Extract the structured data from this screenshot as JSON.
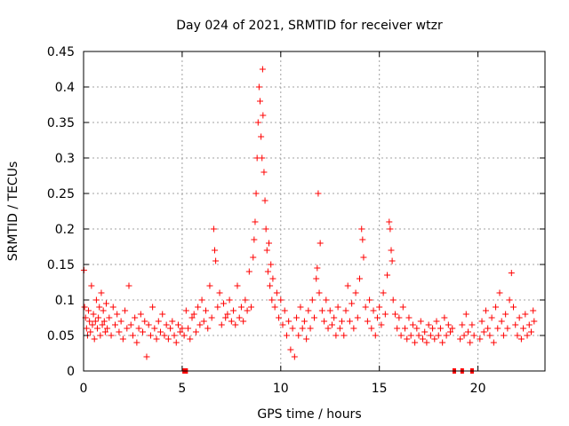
{
  "chart_data": {
    "type": "scatter",
    "title": "Day 024 of 2021, SRMTID for receiver wtzr",
    "xlabel": "GPS time / hours",
    "ylabel": "SRMTID / TECUs",
    "xlim": [
      0,
      23.4
    ],
    "ylim": [
      0,
      0.45
    ],
    "xticks": [
      0,
      5,
      10,
      15,
      20
    ],
    "xtick_labels": [
      "0",
      "5",
      "10",
      "15",
      "20"
    ],
    "yticks": [
      0,
      0.05,
      0.1,
      0.15,
      0.2,
      0.25,
      0.3,
      0.35,
      0.4,
      0.45
    ],
    "ytick_labels": [
      "0",
      "0.05",
      "0.1",
      "0.15",
      "0.2",
      "0.25",
      "0.3",
      "0.35",
      "0.4",
      "0.45"
    ],
    "grid": true,
    "marker": "+",
    "series": [
      {
        "name": "SRMTID",
        "color": "#ff0000",
        "points": [
          [
            0.02,
            0.142
          ],
          [
            0.05,
            0.09
          ],
          [
            0.1,
            0.075
          ],
          [
            0.15,
            0.06
          ],
          [
            0.2,
            0.05
          ],
          [
            0.25,
            0.085
          ],
          [
            0.3,
            0.07
          ],
          [
            0.35,
            0.055
          ],
          [
            0.4,
            0.12
          ],
          [
            0.45,
            0.065
          ],
          [
            0.5,
            0.08
          ],
          [
            0.55,
            0.045
          ],
          [
            0.6,
            0.07
          ],
          [
            0.65,
            0.1
          ],
          [
            0.7,
            0.06
          ],
          [
            0.75,
            0.075
          ],
          [
            0.8,
            0.09
          ],
          [
            0.85,
            0.05
          ],
          [
            0.9,
            0.11
          ],
          [
            0.95,
            0.065
          ],
          [
            1.0,
            0.085
          ],
          [
            1.05,
            0.07
          ],
          [
            1.1,
            0.055
          ],
          [
            1.15,
            0.095
          ],
          [
            1.2,
            0.06
          ],
          [
            1.3,
            0.075
          ],
          [
            1.4,
            0.05
          ],
          [
            1.5,
            0.09
          ],
          [
            1.6,
            0.065
          ],
          [
            1.7,
            0.08
          ],
          [
            1.8,
            0.055
          ],
          [
            1.9,
            0.07
          ],
          [
            2.0,
            0.045
          ],
          [
            2.1,
            0.085
          ],
          [
            2.2,
            0.06
          ],
          [
            2.3,
            0.12
          ],
          [
            2.4,
            0.065
          ],
          [
            2.5,
            0.05
          ],
          [
            2.6,
            0.075
          ],
          [
            2.7,
            0.04
          ],
          [
            2.8,
            0.06
          ],
          [
            2.9,
            0.08
          ],
          [
            3.0,
            0.055
          ],
          [
            3.1,
            0.07
          ],
          [
            3.2,
            0.02
          ],
          [
            3.3,
            0.065
          ],
          [
            3.4,
            0.05
          ],
          [
            3.5,
            0.09
          ],
          [
            3.6,
            0.06
          ],
          [
            3.7,
            0.045
          ],
          [
            3.8,
            0.07
          ],
          [
            3.9,
            0.055
          ],
          [
            4.0,
            0.08
          ],
          [
            4.1,
            0.05
          ],
          [
            4.2,
            0.065
          ],
          [
            4.3,
            0.045
          ],
          [
            4.4,
            0.06
          ],
          [
            4.5,
            0.07
          ],
          [
            4.6,
            0.05
          ],
          [
            4.7,
            0.04
          ],
          [
            4.8,
            0.065
          ],
          [
            4.9,
            0.055
          ],
          [
            5.0,
            0.06
          ],
          [
            5.1,
            0.05
          ],
          [
            5.2,
            0.085
          ],
          [
            5.3,
            0.06
          ],
          [
            5.4,
            0.045
          ],
          [
            5.5,
            0.075
          ],
          [
            5.6,
            0.08
          ],
          [
            5.7,
            0.055
          ],
          [
            5.8,
            0.09
          ],
          [
            5.9,
            0.065
          ],
          [
            6.0,
            0.1
          ],
          [
            6.1,
            0.07
          ],
          [
            6.2,
            0.085
          ],
          [
            6.3,
            0.06
          ],
          [
            6.4,
            0.12
          ],
          [
            6.5,
            0.075
          ],
          [
            6.6,
            0.2
          ],
          [
            6.65,
            0.17
          ],
          [
            6.7,
            0.155
          ],
          [
            6.8,
            0.09
          ],
          [
            6.9,
            0.11
          ],
          [
            7.0,
            0.065
          ],
          [
            7.1,
            0.095
          ],
          [
            7.2,
            0.075
          ],
          [
            7.3,
            0.08
          ],
          [
            7.4,
            0.1
          ],
          [
            7.5,
            0.07
          ],
          [
            7.6,
            0.085
          ],
          [
            7.7,
            0.065
          ],
          [
            7.8,
            0.12
          ],
          [
            7.9,
            0.075
          ],
          [
            8.0,
            0.09
          ],
          [
            8.1,
            0.07
          ],
          [
            8.2,
            0.1
          ],
          [
            8.3,
            0.085
          ],
          [
            8.4,
            0.14
          ],
          [
            8.5,
            0.09
          ],
          [
            8.6,
            0.16
          ],
          [
            8.65,
            0.185
          ],
          [
            8.7,
            0.21
          ],
          [
            8.75,
            0.25
          ],
          [
            8.8,
            0.3
          ],
          [
            8.85,
            0.35
          ],
          [
            8.9,
            0.4
          ],
          [
            8.95,
            0.38
          ],
          [
            9.0,
            0.33
          ],
          [
            9.05,
            0.3
          ],
          [
            9.08,
            0.425
          ],
          [
            9.1,
            0.36
          ],
          [
            9.15,
            0.28
          ],
          [
            9.2,
            0.24
          ],
          [
            9.25,
            0.2
          ],
          [
            9.3,
            0.17
          ],
          [
            9.35,
            0.14
          ],
          [
            9.4,
            0.18
          ],
          [
            9.45,
            0.12
          ],
          [
            9.5,
            0.15
          ],
          [
            9.55,
            0.1
          ],
          [
            9.6,
            0.13
          ],
          [
            9.7,
            0.09
          ],
          [
            9.8,
            0.11
          ],
          [
            9.9,
            0.075
          ],
          [
            10.0,
            0.1
          ],
          [
            10.1,
            0.065
          ],
          [
            10.2,
            0.085
          ],
          [
            10.3,
            0.05
          ],
          [
            10.4,
            0.07
          ],
          [
            10.5,
            0.03
          ],
          [
            10.6,
            0.06
          ],
          [
            10.7,
            0.02
          ],
          [
            10.8,
            0.075
          ],
          [
            10.9,
            0.05
          ],
          [
            11.0,
            0.09
          ],
          [
            11.1,
            0.06
          ],
          [
            11.2,
            0.07
          ],
          [
            11.3,
            0.045
          ],
          [
            11.4,
            0.085
          ],
          [
            11.5,
            0.06
          ],
          [
            11.6,
            0.1
          ],
          [
            11.7,
            0.075
          ],
          [
            11.8,
            0.13
          ],
          [
            11.85,
            0.145
          ],
          [
            11.9,
            0.25
          ],
          [
            11.95,
            0.11
          ],
          [
            12.0,
            0.18
          ],
          [
            12.1,
            0.085
          ],
          [
            12.2,
            0.07
          ],
          [
            12.3,
            0.1
          ],
          [
            12.4,
            0.06
          ],
          [
            12.5,
            0.085
          ],
          [
            12.6,
            0.065
          ],
          [
            12.7,
            0.075
          ],
          [
            12.8,
            0.05
          ],
          [
            12.9,
            0.09
          ],
          [
            13.0,
            0.06
          ],
          [
            13.1,
            0.07
          ],
          [
            13.2,
            0.05
          ],
          [
            13.3,
            0.085
          ],
          [
            13.4,
            0.12
          ],
          [
            13.5,
            0.07
          ],
          [
            13.6,
            0.095
          ],
          [
            13.7,
            0.06
          ],
          [
            13.8,
            0.11
          ],
          [
            13.9,
            0.075
          ],
          [
            14.0,
            0.13
          ],
          [
            14.1,
            0.2
          ],
          [
            14.15,
            0.185
          ],
          [
            14.2,
            0.16
          ],
          [
            14.3,
            0.09
          ],
          [
            14.4,
            0.07
          ],
          [
            14.5,
            0.1
          ],
          [
            14.6,
            0.06
          ],
          [
            14.7,
            0.085
          ],
          [
            14.8,
            0.05
          ],
          [
            14.9,
            0.075
          ],
          [
            15.0,
            0.09
          ],
          [
            15.1,
            0.065
          ],
          [
            15.2,
            0.11
          ],
          [
            15.3,
            0.08
          ],
          [
            15.4,
            0.135
          ],
          [
            15.5,
            0.21
          ],
          [
            15.55,
            0.2
          ],
          [
            15.6,
            0.17
          ],
          [
            15.65,
            0.155
          ],
          [
            15.7,
            0.1
          ],
          [
            15.8,
            0.08
          ],
          [
            15.9,
            0.06
          ],
          [
            16.0,
            0.075
          ],
          [
            16.1,
            0.05
          ],
          [
            16.2,
            0.09
          ],
          [
            16.3,
            0.06
          ],
          [
            16.4,
            0.045
          ],
          [
            16.5,
            0.075
          ],
          [
            16.6,
            0.05
          ],
          [
            16.7,
            0.065
          ],
          [
            16.8,
            0.04
          ],
          [
            16.9,
            0.06
          ],
          [
            17.0,
            0.05
          ],
          [
            17.1,
            0.07
          ],
          [
            17.2,
            0.045
          ],
          [
            17.3,
            0.055
          ],
          [
            17.4,
            0.04
          ],
          [
            17.5,
            0.065
          ],
          [
            17.6,
            0.05
          ],
          [
            17.7,
            0.06
          ],
          [
            17.8,
            0.045
          ],
          [
            17.9,
            0.07
          ],
          [
            18.0,
            0.05
          ],
          [
            18.1,
            0.06
          ],
          [
            18.2,
            0.04
          ],
          [
            18.3,
            0.075
          ],
          [
            18.4,
            0.05
          ],
          [
            18.5,
            0.065
          ],
          [
            18.6,
            0.055
          ],
          [
            18.7,
            0.06
          ],
          [
            19.1,
            0.045
          ],
          [
            19.2,
            0.065
          ],
          [
            19.3,
            0.05
          ],
          [
            19.4,
            0.08
          ],
          [
            19.5,
            0.055
          ],
          [
            19.6,
            0.04
          ],
          [
            19.7,
            0.065
          ],
          [
            19.8,
            0.05
          ],
          [
            20.1,
            0.045
          ],
          [
            20.2,
            0.07
          ],
          [
            20.3,
            0.055
          ],
          [
            20.4,
            0.085
          ],
          [
            20.5,
            0.06
          ],
          [
            20.6,
            0.05
          ],
          [
            20.7,
            0.075
          ],
          [
            20.8,
            0.04
          ],
          [
            20.9,
            0.09
          ],
          [
            21.0,
            0.06
          ],
          [
            21.1,
            0.11
          ],
          [
            21.2,
            0.07
          ],
          [
            21.3,
            0.05
          ],
          [
            21.4,
            0.08
          ],
          [
            21.5,
            0.06
          ],
          [
            21.6,
            0.1
          ],
          [
            21.7,
            0.138
          ],
          [
            21.8,
            0.09
          ],
          [
            21.9,
            0.065
          ],
          [
            22.0,
            0.05
          ],
          [
            22.1,
            0.075
          ],
          [
            22.2,
            0.045
          ],
          [
            22.3,
            0.06
          ],
          [
            22.4,
            0.08
          ],
          [
            22.5,
            0.05
          ],
          [
            22.6,
            0.065
          ],
          [
            22.7,
            0.055
          ],
          [
            22.8,
            0.085
          ],
          [
            22.85,
            0.07
          ]
        ]
      }
    ],
    "gap_markers": [
      5.1,
      5.2,
      18.8,
      19.2,
      19.7
    ]
  }
}
